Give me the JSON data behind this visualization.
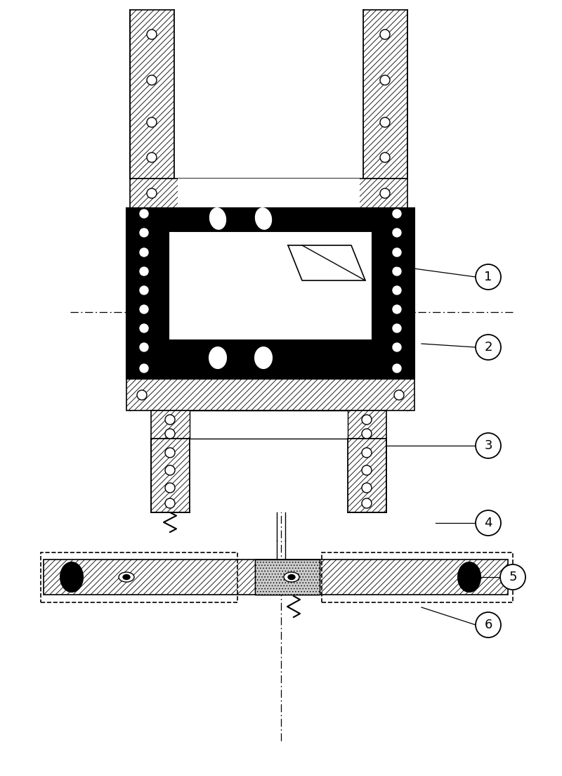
{
  "fig_width": 8.0,
  "fig_height": 11.04,
  "dpi": 100,
  "bg": "#ffffff",
  "black": "#000000",
  "white": "#ffffff",
  "label_fs": 13
}
